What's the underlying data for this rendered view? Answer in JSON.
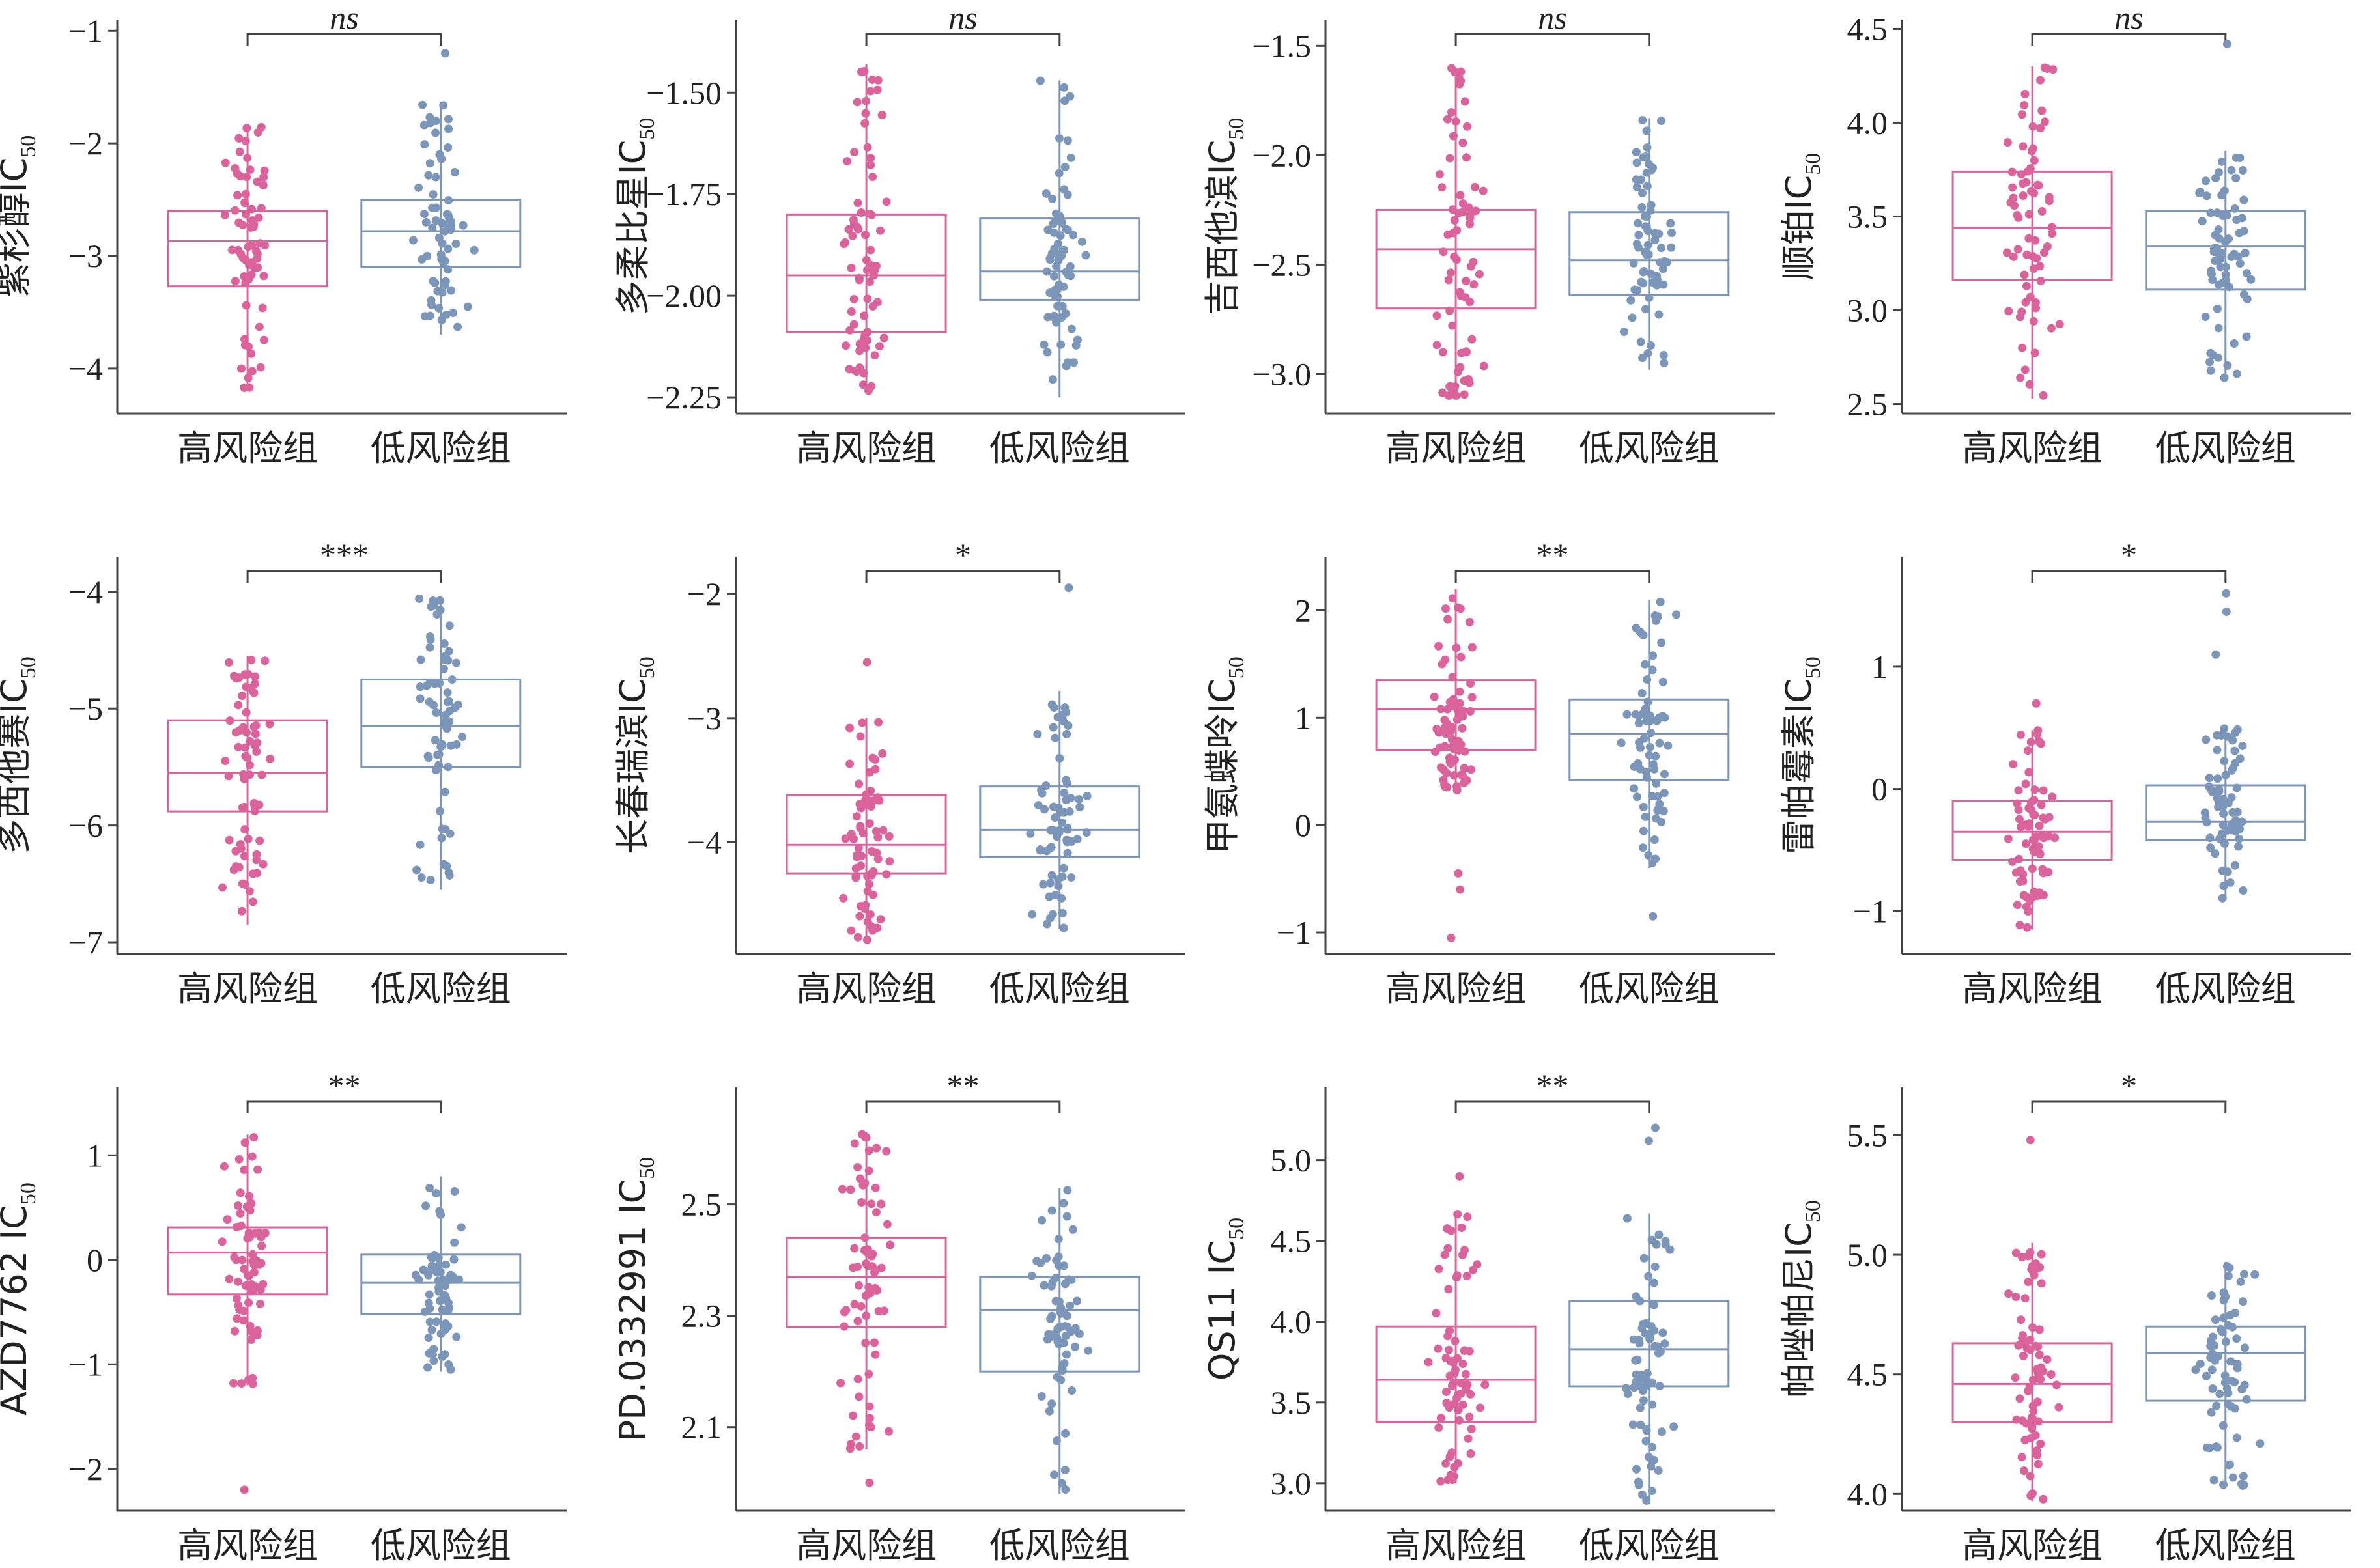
{
  "colors": {
    "high": "#d9639a",
    "low": "#7b96b8",
    "axis": "#444444",
    "text": "#222222"
  },
  "chart_data": [
    {
      "type": "box",
      "ylabel": "紫杉醇IC",
      "ylabel_sub": "50",
      "categories": [
        "高风险组",
        "低风险组"
      ],
      "significance": "ns",
      "ylim": [
        -4.4,
        -0.9
      ],
      "yticks": [
        -4,
        -3,
        -2,
        -1
      ],
      "tick_labels": [
        "−4",
        "−3",
        "−2",
        "−1"
      ],
      "boxes": [
        {
          "group": "高风险组",
          "min": -4.2,
          "q1": -3.27,
          "median": -2.87,
          "q3": -2.6,
          "max": -1.85
        },
        {
          "group": "低风险组",
          "min": -3.7,
          "q1": -3.1,
          "median": -2.78,
          "q3": -2.5,
          "max": -1.63
        }
      ],
      "outliers": [
        [],
        [
          -1.2
        ]
      ]
    },
    {
      "type": "box",
      "ylabel": "多柔比星IC",
      "ylabel_sub": "50",
      "categories": [
        "高风险组",
        "低风险组"
      ],
      "significance": "ns",
      "ylim": [
        -2.29,
        -1.32
      ],
      "yticks": [
        -2.25,
        -2.0,
        -1.75,
        -1.5
      ],
      "tick_labels": [
        "−2.25",
        "−2.00",
        "−1.75",
        "−1.50"
      ],
      "boxes": [
        {
          "group": "高风险组",
          "min": -2.24,
          "q1": -2.09,
          "median": -1.95,
          "q3": -1.8,
          "max": -1.43
        },
        {
          "group": "低风险组",
          "min": -2.25,
          "q1": -2.01,
          "median": -1.94,
          "q3": -1.81,
          "max": -1.47
        }
      ],
      "outliers": [
        [],
        []
      ]
    },
    {
      "type": "box",
      "ylabel": "吉西他滨IC",
      "ylabel_sub": "50",
      "categories": [
        "高风险组",
        "低风险组"
      ],
      "significance": "ns",
      "ylim": [
        -3.18,
        -1.38
      ],
      "yticks": [
        -3.0,
        -2.5,
        -2.0,
        -1.5
      ],
      "tick_labels": [
        "−3.0",
        "−2.5",
        "−2.0",
        "−1.5"
      ],
      "boxes": [
        {
          "group": "高风险组",
          "min": -3.1,
          "q1": -2.7,
          "median": -2.43,
          "q3": -2.25,
          "max": -1.6
        },
        {
          "group": "低风险组",
          "min": -2.98,
          "q1": -2.64,
          "median": -2.48,
          "q3": -2.26,
          "max": -1.83
        }
      ],
      "outliers": [
        [],
        []
      ]
    },
    {
      "type": "box",
      "ylabel": "顺铂IC",
      "ylabel_sub": "50",
      "categories": [
        "高风险组",
        "低风险组"
      ],
      "significance": "ns",
      "ylim": [
        2.45,
        4.55
      ],
      "yticks": [
        2.5,
        3.0,
        3.5,
        4.0,
        4.5
      ],
      "tick_labels": [
        "2.5",
        "3.0",
        "3.5",
        "4.0",
        "4.5"
      ],
      "boxes": [
        {
          "group": "高风险组",
          "min": 2.53,
          "q1": 3.16,
          "median": 3.44,
          "q3": 3.74,
          "max": 4.3
        },
        {
          "group": "低风险组",
          "min": 2.62,
          "q1": 3.11,
          "median": 3.34,
          "q3": 3.53,
          "max": 3.85
        }
      ],
      "outliers": [
        [],
        [
          4.42
        ]
      ]
    },
    {
      "type": "box",
      "ylabel": "多西他赛IC",
      "ylabel_sub": "50",
      "categories": [
        "高风险组",
        "低风险组"
      ],
      "significance": "***",
      "ylim": [
        -7.1,
        -3.7
      ],
      "yticks": [
        -7,
        -6,
        -5,
        -4
      ],
      "tick_labels": [
        "−7",
        "−6",
        "−5",
        "−4"
      ],
      "boxes": [
        {
          "group": "高风险组",
          "min": -6.85,
          "q1": -5.88,
          "median": -5.55,
          "q3": -5.1,
          "max": -4.55
        },
        {
          "group": "低风险组",
          "min": -6.55,
          "q1": -5.5,
          "median": -5.15,
          "q3": -4.75,
          "max": -4.05
        }
      ],
      "outliers": [
        [],
        []
      ]
    },
    {
      "type": "box",
      "ylabel": "长春瑞滨IC",
      "ylabel_sub": "50",
      "categories": [
        "高风险组",
        "低风险组"
      ],
      "significance": "*",
      "ylim": [
        -4.9,
        -1.7
      ],
      "yticks": [
        -4,
        -3,
        -2
      ],
      "tick_labels": [
        "−4",
        "−3",
        "−2"
      ],
      "boxes": [
        {
          "group": "高风险组",
          "min": -4.8,
          "q1": -4.25,
          "median": -4.02,
          "q3": -3.62,
          "max": -3.0
        },
        {
          "group": "低风险组",
          "min": -4.7,
          "q1": -4.12,
          "median": -3.9,
          "q3": -3.55,
          "max": -2.78
        }
      ],
      "outliers": [
        [
          -2.55
        ],
        [
          -1.95
        ]
      ]
    },
    {
      "type": "box",
      "ylabel": "甲氨蝶呤IC",
      "ylabel_sub": "50",
      "categories": [
        "高风险组",
        "低风险组"
      ],
      "significance": "**",
      "ylim": [
        -1.2,
        2.5
      ],
      "yticks": [
        -1,
        0,
        1,
        2
      ],
      "tick_labels": [
        "−1",
        "0",
        "1",
        "2"
      ],
      "boxes": [
        {
          "group": "高风险组",
          "min": 0.3,
          "q1": 0.7,
          "median": 1.08,
          "q3": 1.35,
          "max": 2.2
        },
        {
          "group": "低风险组",
          "min": -0.4,
          "q1": 0.42,
          "median": 0.85,
          "q3": 1.17,
          "max": 2.1
        }
      ],
      "outliers": [
        [
          -0.45,
          -0.6,
          -1.05
        ],
        [
          -0.85
        ]
      ]
    },
    {
      "type": "box",
      "ylabel": "雷帕霉素IC",
      "ylabel_sub": "50",
      "categories": [
        "高风险组",
        "低风险组"
      ],
      "significance": "*",
      "ylim": [
        -1.35,
        1.9
      ],
      "yticks": [
        -1,
        0,
        1
      ],
      "tick_labels": [
        "−1",
        "0",
        "1"
      ],
      "boxes": [
        {
          "group": "高风险组",
          "min": -1.15,
          "q1": -0.58,
          "median": -0.35,
          "q3": -0.1,
          "max": 0.48
        },
        {
          "group": "低风险组",
          "min": -0.9,
          "q1": -0.42,
          "median": -0.27,
          "q3": 0.03,
          "max": 0.5
        }
      ],
      "outliers": [
        [
          0.7
        ],
        [
          1.1,
          1.45,
          1.6
        ]
      ]
    },
    {
      "type": "box",
      "ylabel": "AZD7762 IC",
      "ylabel_sub": "50",
      "categories": [
        "高风险组",
        "低风险组"
      ],
      "significance": "**",
      "ylim": [
        -2.4,
        1.65
      ],
      "yticks": [
        -2,
        -1,
        0,
        1
      ],
      "tick_labels": [
        "−2",
        "−1",
        "0",
        "1"
      ],
      "boxes": [
        {
          "group": "高风险组",
          "min": -1.2,
          "q1": -0.33,
          "median": 0.07,
          "q3": 0.31,
          "max": 1.2
        },
        {
          "group": "低风险组",
          "min": -1.07,
          "q1": -0.52,
          "median": -0.22,
          "q3": 0.05,
          "max": 0.8
        }
      ],
      "outliers": [
        [
          -2.2
        ],
        []
      ]
    },
    {
      "type": "box",
      "ylabel": "PD.0332991 IC",
      "ylabel_sub": "50",
      "categories": [
        "高风险组",
        "低风险组"
      ],
      "significance": "**",
      "ylim": [
        1.95,
        2.71
      ],
      "yticks": [
        2.1,
        2.3,
        2.5
      ],
      "tick_labels": [
        "2.1",
        "2.3",
        "2.5"
      ],
      "boxes": [
        {
          "group": "高风险组",
          "min": 2.06,
          "q1": 2.28,
          "median": 2.37,
          "q3": 2.44,
          "max": 2.63
        },
        {
          "group": "低风险组",
          "min": 1.98,
          "q1": 2.2,
          "median": 2.31,
          "q3": 2.37,
          "max": 2.53
        }
      ],
      "outliers": [
        [
          2.0
        ],
        []
      ]
    },
    {
      "type": "box",
      "ylabel": "QS11 IC",
      "ylabel_sub": "50",
      "categories": [
        "高风险组",
        "低风险组"
      ],
      "significance": "**",
      "ylim": [
        2.83,
        5.45
      ],
      "yticks": [
        3.0,
        3.5,
        4.0,
        4.5,
        5.0
      ],
      "tick_labels": [
        "3.0",
        "3.5",
        "4.0",
        "4.5",
        "5.0"
      ],
      "boxes": [
        {
          "group": "高风险组",
          "min": 3.0,
          "q1": 3.38,
          "median": 3.64,
          "q3": 3.97,
          "max": 4.67
        },
        {
          "group": "低风险组",
          "min": 2.87,
          "q1": 3.6,
          "median": 3.83,
          "q3": 4.13,
          "max": 4.67
        }
      ],
      "outliers": [
        [
          4.9
        ],
        [
          5.12,
          5.2
        ]
      ]
    },
    {
      "type": "box",
      "ylabel": "帕唑帕尼IC",
      "ylabel_sub": "50",
      "categories": [
        "高风险组",
        "低风险组"
      ],
      "significance": "*",
      "ylim": [
        3.93,
        5.7
      ],
      "yticks": [
        4.0,
        4.5,
        5.0,
        5.5
      ],
      "tick_labels": [
        "4.0",
        "4.5",
        "5.0",
        "5.5"
      ],
      "boxes": [
        {
          "group": "高风险组",
          "min": 3.97,
          "q1": 4.3,
          "median": 4.46,
          "q3": 4.63,
          "max": 5.05
        },
        {
          "group": "低风险组",
          "min": 4.03,
          "q1": 4.39,
          "median": 4.59,
          "q3": 4.7,
          "max": 4.97
        }
      ],
      "outliers": [
        [
          5.48
        ],
        []
      ]
    }
  ]
}
